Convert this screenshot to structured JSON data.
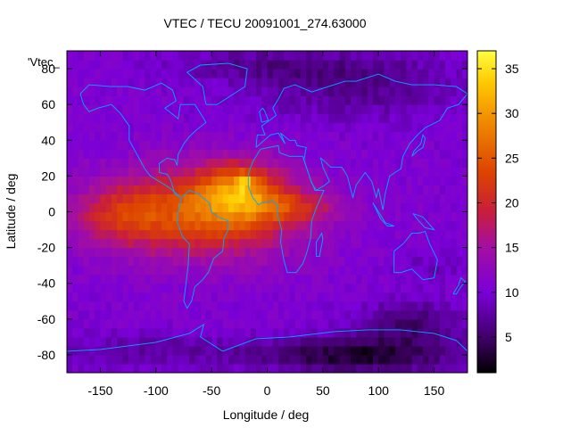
{
  "chart_data": {
    "type": "heatmap",
    "title": "VTEC / TECU 20091001_274.63000",
    "xlabel": "Longitude / deg",
    "ylabel": "Latitude / deg",
    "xlim": [
      -180,
      180
    ],
    "ylim": [
      -90,
      90
    ],
    "xticks": [
      -150,
      -100,
      -50,
      0,
      50,
      100,
      150
    ],
    "yticks": [
      -80,
      -60,
      -40,
      -20,
      0,
      20,
      40,
      60,
      80
    ],
    "colorbar": {
      "min": 1,
      "max": 37,
      "ticks": [
        5,
        10,
        15,
        20,
        25,
        30,
        35
      ]
    },
    "legend_label": "'Vtec_",
    "overlay": "coastlines",
    "features": [
      {
        "name": "equatorial-anomaly-core",
        "lon": -20,
        "lat": 17,
        "vtec": 36
      },
      {
        "name": "south-american-crest",
        "lon": -70,
        "lat": -5,
        "vtec": 27
      },
      {
        "name": "atlantic-crest",
        "lon": -30,
        "lat": 5,
        "vtec": 27
      },
      {
        "name": "pacific-tongue",
        "lon": -135,
        "lat": -2,
        "vtec": 20
      },
      {
        "name": "antarctic-minimum",
        "lon": 80,
        "lat": -80,
        "vtec": 2
      }
    ]
  }
}
